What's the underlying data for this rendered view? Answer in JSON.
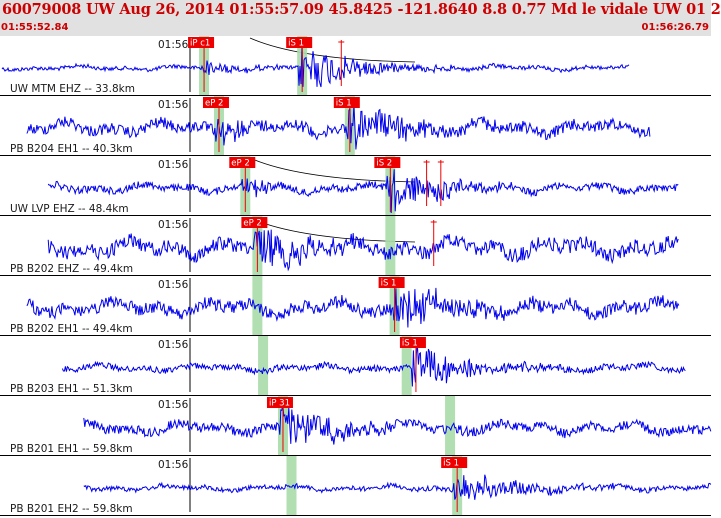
{
  "header": {
    "title": "60079008 UW Aug 26, 2014 01:55:57.09    45.8425 -121.8640  8.8 0.77 Md le vidale UW 01   2",
    "time_start": "01:55:52.84",
    "time_end": "01:56:26.79"
  },
  "colors": {
    "trace": "#0000ee",
    "pick": "#ee0000",
    "window": "#a8dca8",
    "header_bg": "#e1e1e1",
    "header_text": "#cc0000"
  },
  "traces": [
    {
      "label": "UW MTM EHZ -- 33.8km",
      "minute_mark": "01:56",
      "amp": 5,
      "noise": "low",
      "event_amp": 26,
      "extent": [
        0.0,
        0.885
      ],
      "arcs": [
        {
          "label": "P",
          "arc": true
        }
      ],
      "picks": [
        {
          "label": "iP c1",
          "pos": 0.287
        },
        {
          "label": "iS 1",
          "pos": 0.425
        }
      ],
      "windows": [
        0.287,
        0.425
      ],
      "markers": [
        0.48
      ]
    },
    {
      "label": "PB B204 EH1 -- 40.3km",
      "minute_mark": "01:56",
      "amp": 7,
      "noise": "high",
      "event_amp": 22,
      "extent": [
        0.035,
        0.915
      ],
      "picks": [
        {
          "label": "eP 2",
          "pos": 0.308
        },
        {
          "label": "iS 1",
          "pos": 0.492
        }
      ],
      "windows": [
        0.308,
        0.492
      ],
      "markers": []
    },
    {
      "label": "UW LVP EHZ -- 48.4km",
      "minute_mark": "01:56",
      "amp": 6,
      "noise": "mid",
      "event_amp": 24,
      "extent": [
        0.065,
        0.955
      ],
      "arcs": [
        {
          "label": "S",
          "arc": true
        }
      ],
      "picks": [
        {
          "label": "eP 2",
          "pos": 0.345
        },
        {
          "label": "iS 2",
          "pos": 0.549
        }
      ],
      "windows": [
        0.345,
        0.549
      ],
      "markers": [
        0.6,
        0.62
      ]
    },
    {
      "label": "PB B202 EHZ -- 49.4km",
      "minute_mark": "01:56",
      "amp": 12,
      "noise": "mid",
      "event_amp": 20,
      "extent": [
        0.065,
        0.955
      ],
      "arcs": [
        {
          "label": "S",
          "arc": true
        }
      ],
      "picks": [
        {
          "label": "eP 2",
          "pos": 0.362
        }
      ],
      "windows": [
        0.362,
        0.549
      ],
      "markers": [
        0.61
      ]
    },
    {
      "label": "PB B202 EH1 -- 49.4km",
      "minute_mark": "01:56",
      "amp": 8,
      "noise": "high",
      "event_amp": 22,
      "extent": [
        0.035,
        0.955
      ],
      "picks": [
        {
          "label": "iS 1",
          "pos": 0.555
        }
      ],
      "windows": [
        0.362,
        0.555
      ],
      "markers": []
    },
    {
      "label": "PB B203 EH1 -- 51.3km",
      "minute_mark": "01:56",
      "amp": 5,
      "noise": "mid",
      "event_amp": 22,
      "extent": [
        0.085,
        0.965
      ],
      "picks": [
        {
          "label": "iS 1",
          "pos": 0.585
        }
      ],
      "windows": [
        0.37,
        0.572
      ],
      "markers": []
    },
    {
      "label": "PB B201 EH1 -- 59.8km",
      "minute_mark": "01:56",
      "amp": 6,
      "noise": "high",
      "event_amp": 24,
      "extent": [
        0.115,
        1.0
      ],
      "picks": [
        {
          "label": "iP 31",
          "pos": 0.398
        }
      ],
      "windows": [
        0.398,
        0.633
      ],
      "markers": []
    },
    {
      "label": "PB B201 EH2 -- 59.8km",
      "minute_mark": "01:56",
      "amp": 4,
      "noise": "mid",
      "event_amp": 18,
      "extent": [
        0.115,
        1.0
      ],
      "picks": [
        {
          "label": "iS 1",
          "pos": 0.643
        }
      ],
      "windows": [
        0.41,
        0.643
      ],
      "markers": []
    }
  ]
}
